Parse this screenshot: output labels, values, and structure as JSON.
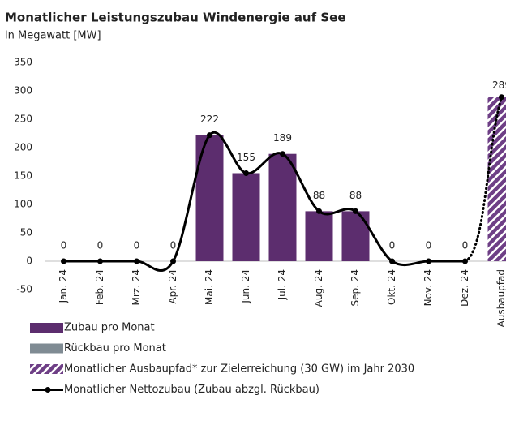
{
  "chart_data": {
    "type": "bar",
    "title": "Monatlicher Leistungszubau Windenergie auf See",
    "subtitle": "in Megawatt [MW]",
    "categories": [
      "Jan. 24",
      "Feb. 24",
      "Mrz. 24",
      "Apr. 24",
      "Mai. 24",
      "Jun. 24",
      "Jul. 24",
      "Aug. 24",
      "Sep. 24",
      "Okt. 24",
      "Nov. 24",
      "Dez. 24",
      "Ausbaupfad"
    ],
    "ylim": [
      -50,
      350
    ],
    "yticks": [
      -50,
      0,
      50,
      100,
      150,
      200,
      250,
      300,
      350
    ],
    "series": [
      {
        "name": "Zubau pro Monat",
        "type": "bar",
        "color": "#5c2d6e",
        "values": [
          0,
          0,
          0,
          0,
          222,
          155,
          189,
          88,
          88,
          0,
          0,
          0,
          null
        ]
      },
      {
        "name": "Rückbau pro Monat",
        "type": "bar",
        "color": "#7f8b93",
        "values": [
          0,
          0,
          0,
          0,
          0,
          0,
          0,
          0,
          0,
          0,
          0,
          0,
          null
        ]
      },
      {
        "name": "Monatlicher Ausbaupfad* zur Zielerreichung (30 GW) im Jahr 2030",
        "type": "bar",
        "hatch": true,
        "color": "#6e3f86",
        "values": [
          null,
          null,
          null,
          null,
          null,
          null,
          null,
          null,
          null,
          null,
          null,
          null,
          289
        ]
      },
      {
        "name": "Monatlicher Nettozubau (Zubau abzgl. Rückbau)",
        "type": "line",
        "color": "#000000",
        "values": [
          0,
          0,
          0,
          0,
          222,
          155,
          189,
          88,
          88,
          0,
          0,
          0,
          null
        ]
      }
    ]
  }
}
